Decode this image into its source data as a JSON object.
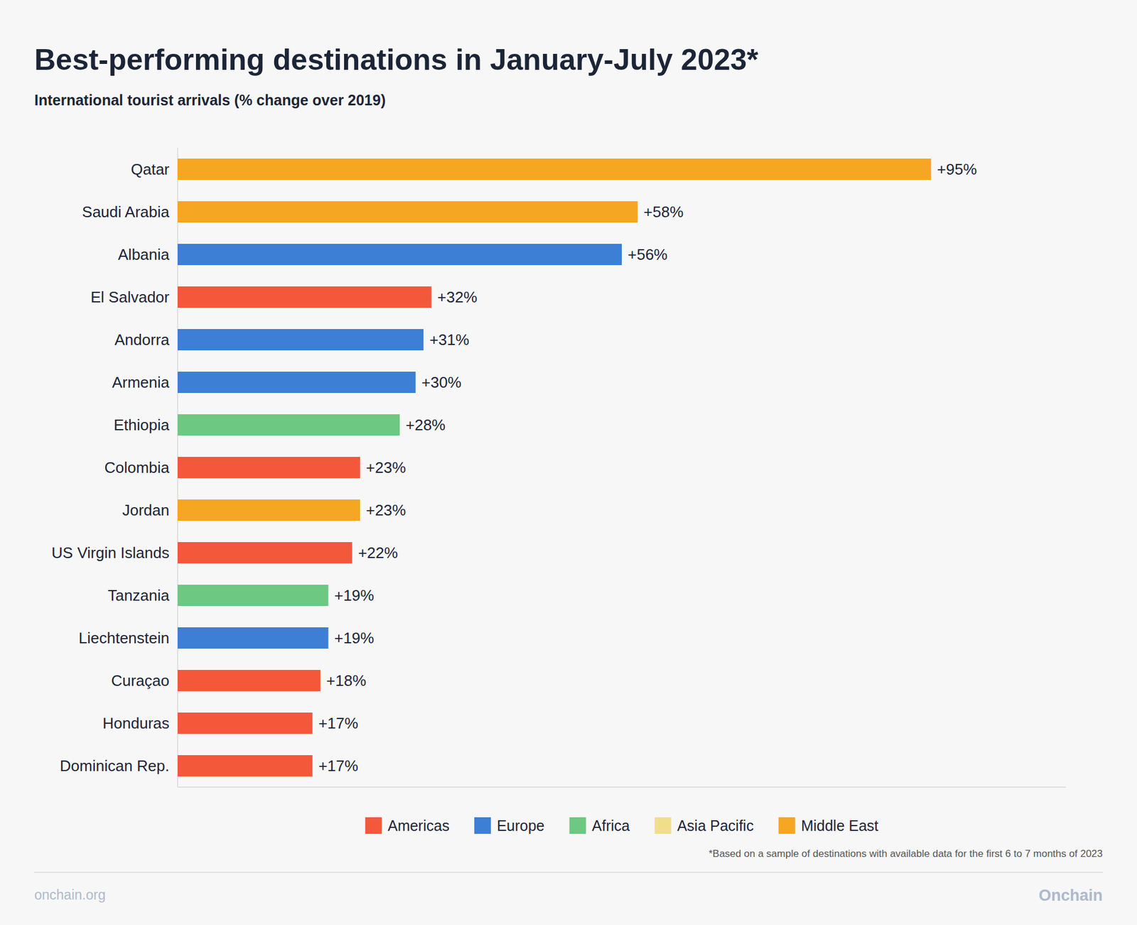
{
  "chart_data": {
    "type": "bar",
    "orientation": "horizontal",
    "stacked": true,
    "title": "Best-performing destinations in January-July 2023*",
    "subtitle": "International tourist arrivals (% change over 2019)",
    "annotations": [
      "*Based on a sample of destinations with available data for the first 6 to 7 months of 2023",
      "onchain.org",
      "Onchain"
    ],
    "categories": [
      "Qatar",
      "Saudi Arabia",
      "Albania",
      "El Salvador",
      "Andorra",
      "Armenia",
      "Ethiopia",
      "Colombia",
      "Jordan",
      "US Virgin Islands",
      "Tanzania",
      "Liechtenstein",
      "Curaçao",
      "Honduras",
      "Dominican Rep."
    ],
    "series": [
      {
        "name": "Americas",
        "color": "#F4583A",
        "values": [
          null,
          null,
          null,
          32,
          null,
          null,
          null,
          23,
          null,
          22,
          null,
          null,
          18,
          17,
          17
        ],
        "value_labels": [
          null,
          null,
          null,
          "+32%",
          null,
          null,
          null,
          "+23%",
          null,
          "+22%",
          null,
          null,
          "+18%",
          "+17%",
          "+17%"
        ]
      },
      {
        "name": "Europe",
        "color": "#3D7FD4",
        "values": [
          null,
          null,
          56,
          null,
          31,
          30,
          null,
          null,
          null,
          null,
          null,
          19,
          null,
          null,
          null
        ],
        "value_labels": [
          null,
          null,
          "+56%",
          null,
          "+31%",
          "+30%",
          null,
          null,
          null,
          null,
          null,
          "+19%",
          null,
          null,
          null
        ]
      },
      {
        "name": "Africa",
        "color": "#6DC882",
        "values": [
          null,
          null,
          null,
          null,
          null,
          null,
          28,
          null,
          null,
          null,
          19,
          null,
          null,
          null,
          null
        ],
        "value_labels": [
          null,
          null,
          null,
          null,
          null,
          null,
          "+28%",
          null,
          null,
          null,
          "+19%",
          null,
          null,
          null,
          null
        ]
      },
      {
        "name": "Asia Pacific",
        "color": "#F0DE8C",
        "values": [
          null,
          null,
          null,
          null,
          null,
          null,
          null,
          null,
          null,
          null,
          null,
          null,
          null,
          null,
          null
        ],
        "value_labels": [
          null,
          null,
          null,
          null,
          null,
          null,
          null,
          null,
          null,
          null,
          null,
          null,
          null,
          null,
          null
        ]
      },
      {
        "name": "Middle East",
        "color": "#F5A623",
        "values": [
          95,
          58,
          null,
          null,
          null,
          null,
          null,
          null,
          23,
          null,
          null,
          null,
          null,
          null,
          null
        ],
        "value_labels": [
          "+95%",
          "+58%",
          null,
          null,
          null,
          null,
          null,
          null,
          "+23%",
          null,
          null,
          null,
          null,
          null,
          null
        ]
      }
    ],
    "xlim": [
      0,
      112
    ],
    "data_labels": true,
    "tick_labels": "y",
    "grid": false,
    "legend": "bottom"
  }
}
